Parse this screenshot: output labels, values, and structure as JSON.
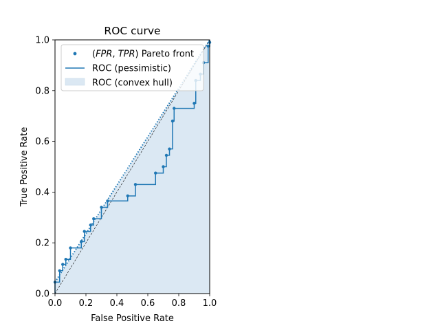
{
  "chart_data": {
    "type": "line",
    "title": "ROC curve",
    "xlabel": "False Positive Rate",
    "ylabel": "True Positive Rate",
    "xlim": [
      0,
      1
    ],
    "ylim": [
      0,
      1
    ],
    "xticks": [
      "0.0",
      "0.2",
      "0.4",
      "0.6",
      "0.8",
      "1.0"
    ],
    "yticks": [
      "0.0",
      "0.2",
      "0.4",
      "0.6",
      "0.8",
      "1.0"
    ],
    "grid": false,
    "legend_position": "top-left",
    "legend": {
      "pareto_label": "(FPR, TPR) Pareto front",
      "pareto_label_parts": [
        "(",
        "FPR",
        ", ",
        "TPR",
        ") Pareto front"
      ],
      "pessimistic_label": "ROC (pessimistic)",
      "hull_label": "ROC (convex hull)"
    },
    "colors": {
      "series": "#1f77b4",
      "hull_fill": "#dbe8f3",
      "diagonal": "#000000"
    },
    "series": [
      {
        "name": "(FPR, TPR) Pareto front",
        "kind": "scatter",
        "points": [
          [
            0.0,
            0.045
          ],
          [
            0.03,
            0.09
          ],
          [
            0.05,
            0.115
          ],
          [
            0.07,
            0.135
          ],
          [
            0.1,
            0.18
          ],
          [
            0.17,
            0.205
          ],
          [
            0.19,
            0.245
          ],
          [
            0.23,
            0.27
          ],
          [
            0.25,
            0.295
          ],
          [
            0.3,
            0.34
          ],
          [
            0.34,
            0.365
          ],
          [
            0.47,
            0.385
          ],
          [
            0.52,
            0.43
          ],
          [
            0.65,
            0.475
          ],
          [
            0.7,
            0.5
          ],
          [
            0.72,
            0.545
          ],
          [
            0.74,
            0.57
          ],
          [
            0.76,
            0.68
          ],
          [
            0.77,
            0.73
          ],
          [
            0.9,
            0.75
          ],
          [
            0.91,
            0.84
          ],
          [
            0.94,
            0.865
          ],
          [
            0.96,
            0.91
          ],
          [
            0.99,
            0.975
          ],
          [
            1.0,
            0.99
          ]
        ]
      },
      {
        "name": "ROC (pessimistic)",
        "kind": "step",
        "points": [
          [
            0.0,
            0.0
          ],
          [
            0.0,
            0.045
          ],
          [
            0.03,
            0.045
          ],
          [
            0.03,
            0.09
          ],
          [
            0.05,
            0.09
          ],
          [
            0.05,
            0.115
          ],
          [
            0.07,
            0.115
          ],
          [
            0.07,
            0.135
          ],
          [
            0.1,
            0.135
          ],
          [
            0.1,
            0.18
          ],
          [
            0.17,
            0.18
          ],
          [
            0.17,
            0.205
          ],
          [
            0.19,
            0.205
          ],
          [
            0.19,
            0.245
          ],
          [
            0.23,
            0.245
          ],
          [
            0.23,
            0.27
          ],
          [
            0.25,
            0.27
          ],
          [
            0.25,
            0.295
          ],
          [
            0.3,
            0.295
          ],
          [
            0.3,
            0.34
          ],
          [
            0.34,
            0.34
          ],
          [
            0.34,
            0.365
          ],
          [
            0.47,
            0.365
          ],
          [
            0.47,
            0.385
          ],
          [
            0.52,
            0.385
          ],
          [
            0.52,
            0.43
          ],
          [
            0.65,
            0.43
          ],
          [
            0.65,
            0.475
          ],
          [
            0.7,
            0.475
          ],
          [
            0.7,
            0.5
          ],
          [
            0.72,
            0.5
          ],
          [
            0.72,
            0.545
          ],
          [
            0.74,
            0.545
          ],
          [
            0.74,
            0.57
          ],
          [
            0.76,
            0.57
          ],
          [
            0.76,
            0.68
          ],
          [
            0.77,
            0.68
          ],
          [
            0.77,
            0.73
          ],
          [
            0.9,
            0.73
          ],
          [
            0.9,
            0.75
          ],
          [
            0.91,
            0.75
          ],
          [
            0.91,
            0.84
          ],
          [
            0.94,
            0.84
          ],
          [
            0.94,
            0.865
          ],
          [
            0.96,
            0.865
          ],
          [
            0.96,
            0.91
          ],
          [
            0.99,
            0.91
          ],
          [
            0.99,
            0.975
          ],
          [
            1.0,
            0.975
          ],
          [
            1.0,
            0.99
          ],
          [
            1.0,
            1.0
          ]
        ]
      },
      {
        "name": "ROC (convex hull)",
        "kind": "area",
        "points": [
          [
            0.0,
            0.0
          ],
          [
            0.0,
            0.045
          ],
          [
            1.0,
            1.0
          ],
          [
            1.0,
            0.0
          ]
        ]
      },
      {
        "kind": "dotted-line",
        "points": [
          [
            0.0,
            0.045
          ],
          [
            1.0,
            1.0
          ]
        ]
      },
      {
        "kind": "dashed-line",
        "points": [
          [
            0.0,
            0.0
          ],
          [
            1.0,
            1.0
          ]
        ]
      }
    ]
  }
}
